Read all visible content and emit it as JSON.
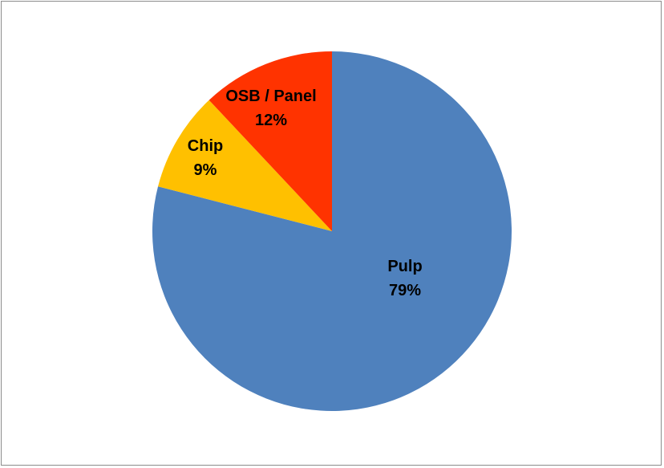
{
  "chart_data": {
    "type": "pie",
    "title": "",
    "start_angle_deg": 90,
    "direction": "clockwise",
    "slices": [
      {
        "label": "Pulp",
        "value": 79,
        "value_label": "79%",
        "color": "#4f81bd"
      },
      {
        "label": "Chip",
        "value": 9,
        "value_label": "9%",
        "color": "#ffc000"
      },
      {
        "label": "OSB / Panel",
        "value": 12,
        "value_label": "12%",
        "color": "#ff3300"
      }
    ],
    "legend": "none",
    "data_labels": "inside, category name and percentage"
  }
}
